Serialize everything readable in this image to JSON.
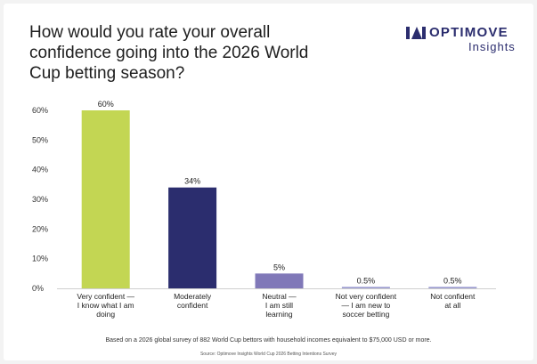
{
  "header": {
    "title": "How would you rate your overall confidence going into the 2026 World Cup betting season?"
  },
  "brand": {
    "name": "OPTIMOVE",
    "sub": "Insights",
    "color": "#2b2d6e"
  },
  "chart_data": {
    "type": "bar",
    "categories": [
      [
        "Very confident —",
        "I know what I am",
        "doing"
      ],
      [
        "Moderately",
        "confident"
      ],
      [
        "Neutral —",
        "I am still",
        "learning"
      ],
      [
        "Not very confident",
        "— I am new to",
        "soccer betting"
      ],
      [
        "Not confident",
        "at all"
      ]
    ],
    "values": [
      60,
      34,
      5,
      0.5,
      0.5
    ],
    "value_labels": [
      "60%",
      "34%",
      "5%",
      "0.5%",
      "0.5%"
    ],
    "colors": [
      "#c3d653",
      "#2b2d6e",
      "#8078b8",
      "#9a9ad0",
      "#9a9ad0"
    ],
    "yticks": [
      "0%",
      "10%",
      "20%",
      "30%",
      "40%",
      "50%",
      "60%"
    ],
    "ylim": [
      0,
      60
    ],
    "grid": false,
    "legend": "none"
  },
  "footer": {
    "note": "Based on a 2026 global survey of 882 World Cup bettors with household incomes equivalent to $75,000 USD or more.",
    "source": "Source: Optimove Insights World Cup 2026 Betting Intentions Survey"
  }
}
